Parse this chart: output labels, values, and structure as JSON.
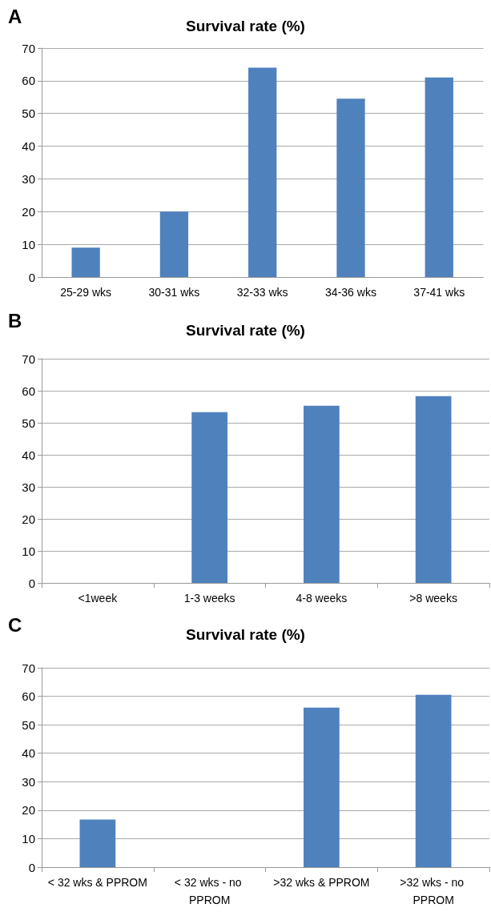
{
  "chart_data": [
    {
      "type": "bar",
      "title": "Survival rate (%)",
      "annotations": [
        "A"
      ],
      "categories": [
        "25-29 wks",
        "30-31 wks",
        "32-33 wks",
        "34-36 wks",
        "37-41 wks"
      ],
      "values": [
        9,
        20,
        64,
        54.5,
        61
      ],
      "color": "#4f81bd",
      "ylim": [
        0,
        70
      ],
      "yticks": [
        0,
        10,
        20,
        30,
        40,
        50,
        60,
        70
      ],
      "grid": "y"
    },
    {
      "type": "bar",
      "title": "Survival rate (%)",
      "annotations": [
        "B"
      ],
      "categories": [
        "<1week",
        "1-3 weeks",
        "4-8 weeks",
        ">8 weeks"
      ],
      "values": [
        0,
        53.3,
        55.3,
        58.3
      ],
      "color": "#4f81bd",
      "ylim": [
        0,
        70
      ],
      "yticks": [
        0,
        10,
        20,
        30,
        40,
        50,
        60,
        70
      ],
      "grid": "y"
    },
    {
      "type": "bar",
      "title": "Survival rate (%)",
      "annotations": [
        "C"
      ],
      "categories": [
        "< 32 wks & PPROM",
        "< 32 wks - no PPROM",
        ">32 wks & PPROM",
        ">32 wks - no PPROM"
      ],
      "values": [
        16.7,
        0,
        56,
        60.5
      ],
      "color": "#4f81bd",
      "ylim": [
        0,
        70
      ],
      "yticks": [
        0,
        10,
        20,
        30,
        40,
        50,
        60,
        70
      ],
      "grid": "y"
    }
  ]
}
